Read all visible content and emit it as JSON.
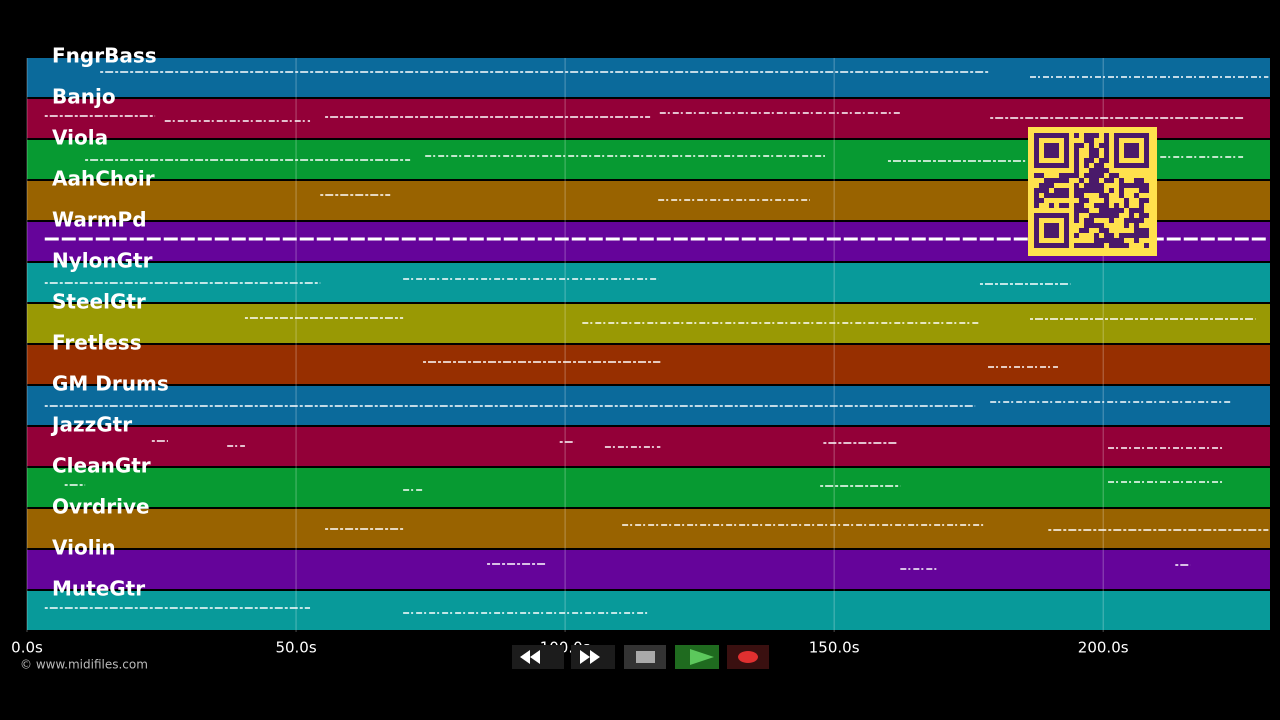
{
  "timeline": {
    "xlim": [
      0,
      231
    ],
    "ticks": [
      {
        "value": 0,
        "label": "0.0s"
      },
      {
        "value": 50,
        "label": "50.0s"
      },
      {
        "value": 100,
        "label": "100.0s"
      },
      {
        "value": 150,
        "label": "150.0s"
      },
      {
        "value": 200,
        "label": "200.0s"
      }
    ]
  },
  "tracks": [
    {
      "name": "FngrBass",
      "color": "#0b6a9b",
      "notes": [
        [
          13.6,
          179
        ],
        [
          186.4,
          230.7
        ]
      ]
    },
    {
      "name": "Banjo",
      "color": "#930038",
      "notes": [
        [
          3.3,
          23.8
        ],
        [
          25.6,
          52.6
        ],
        [
          55.4,
          115.8
        ],
        [
          117.6,
          162.3
        ],
        [
          179,
          226
        ]
      ]
    },
    {
      "name": "Viola",
      "color": "#079a32",
      "notes": [
        [
          10.8,
          71.2
        ],
        [
          74,
          148.3
        ],
        [
          160,
          185.5
        ],
        [
          210.6,
          226
        ]
      ]
    },
    {
      "name": "AahChoir",
      "color": "#996300",
      "notes": [
        [
          54.5,
          67.5
        ],
        [
          117.3,
          145.5
        ]
      ]
    },
    {
      "name": "WarmPd",
      "color": "#65049a",
      "notes": [
        [
          3.3,
          230.7
        ]
      ]
    },
    {
      "name": "NylonGtr",
      "color": "#089a9a",
      "notes": [
        [
          3.3,
          54.5
        ],
        [
          69.9,
          117.3
        ],
        [
          177.1,
          193.9
        ]
      ]
    },
    {
      "name": "SteelGtr",
      "color": "#999904",
      "notes": [
        [
          40.5,
          69.9
        ],
        [
          103.2,
          177.1
        ],
        [
          186.4,
          228.3
        ]
      ]
    },
    {
      "name": "Fretless",
      "color": "#972f00",
      "notes": [
        [
          73.6,
          117.7
        ],
        [
          178.6,
          191.6
        ]
      ]
    },
    {
      "name": "GM Drums",
      "color": "#0b6a9b",
      "notes": [
        [
          3.3,
          176.2
        ],
        [
          179,
          223.6
        ]
      ]
    },
    {
      "name": "JazzGtr",
      "color": "#930038",
      "notes": [
        [
          23.2,
          26.2
        ],
        [
          37.2,
          40.5
        ],
        [
          99,
          101.8
        ],
        [
          107.4,
          117.7
        ],
        [
          148,
          161.9
        ],
        [
          200.9,
          222.1
        ]
      ]
    },
    {
      "name": "CleanGtr",
      "color": "#079a32",
      "notes": [
        [
          7,
          10.8
        ],
        [
          69.9,
          73.6
        ],
        [
          147.4,
          162.3
        ],
        [
          200.9,
          222.1
        ]
      ]
    },
    {
      "name": "Ovrdrive",
      "color": "#996300",
      "notes": [
        [
          55.4,
          69.9
        ],
        [
          110.6,
          178
        ],
        [
          189.8,
          230.7
        ]
      ]
    },
    {
      "name": "Violin",
      "color": "#65049a",
      "notes": [
        [
          85.5,
          96.3
        ],
        [
          162.3,
          169.4
        ],
        [
          213.4,
          216.2
        ]
      ]
    },
    {
      "name": "MuteGtr",
      "color": "#089a9a",
      "notes": [
        [
          3.3,
          52.6
        ],
        [
          69.9,
          115.8
        ]
      ]
    }
  ],
  "footer": {
    "credit": "© www.midifiles.com"
  }
}
